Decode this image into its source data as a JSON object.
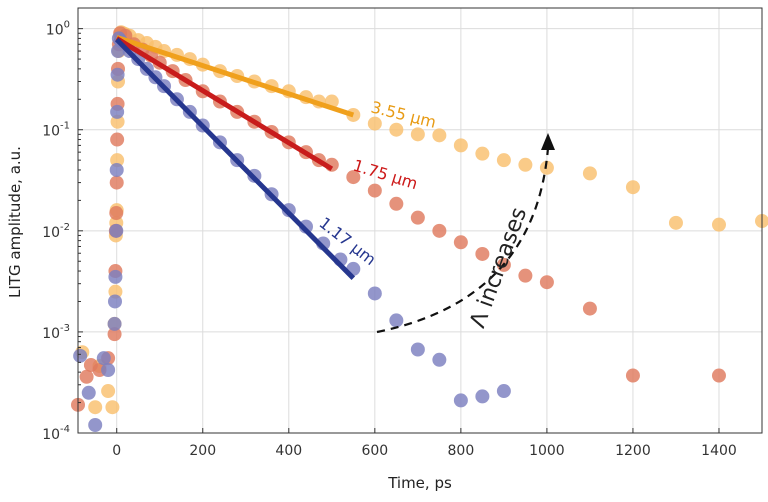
{
  "chart_data": {
    "type": "scatter",
    "title": "",
    "xlabel": "Time, ps",
    "ylabel": "LITG amplitude, a.u.",
    "xlim": [
      -90,
      1500
    ],
    "ylim": [
      0.0001,
      1.6
    ],
    "yscale": "log",
    "grid": true,
    "x_ticks": [
      0,
      200,
      400,
      600,
      800,
      1000,
      1200,
      1400
    ],
    "x_tick_labels": [
      "0",
      "200",
      "400",
      "600",
      "800",
      "1000",
      "1200",
      "1400"
    ],
    "y_ticks": [
      1,
      0.1,
      0.01,
      0.001,
      0.0001
    ],
    "y_tick_labels": [
      {
        "base": "10",
        "exp": "0"
      },
      {
        "base": "10",
        "exp": "-1"
      },
      {
        "base": "10",
        "exp": "-2"
      },
      {
        "base": "10",
        "exp": "-3"
      },
      {
        "base": "10",
        "exp": "-4"
      }
    ],
    "series": [
      {
        "name": "3.55 µm",
        "label": "3.55 µm",
        "dot_color": "#f9c06e",
        "fit_color": "#f0a01c",
        "label_color": "#e89b14",
        "fit": {
          "x0": 0,
          "y0": 0.82,
          "x1": 550,
          "y1": 0.14
        },
        "points": [
          [
            -80,
            0.00063
          ],
          [
            -50,
            0.00018
          ],
          [
            -40,
            0.00046
          ],
          [
            -20,
            0.00026
          ],
          [
            -10,
            0.00018
          ],
          [
            -5,
            0.0012
          ],
          [
            -3,
            0.0025
          ],
          [
            -2,
            0.009
          ],
          [
            -1,
            0.012
          ],
          [
            0,
            0.016
          ],
          [
            1,
            0.05
          ],
          [
            2,
            0.12
          ],
          [
            3,
            0.3
          ],
          [
            5,
            0.6
          ],
          [
            8,
            0.85
          ],
          [
            10,
            0.92
          ],
          [
            15,
            0.9
          ],
          [
            20,
            0.88
          ],
          [
            30,
            0.85
          ],
          [
            50,
            0.77
          ],
          [
            70,
            0.72
          ],
          [
            90,
            0.66
          ],
          [
            110,
            0.6
          ],
          [
            140,
            0.55
          ],
          [
            170,
            0.5
          ],
          [
            200,
            0.44
          ],
          [
            240,
            0.38
          ],
          [
            280,
            0.34
          ],
          [
            320,
            0.3
          ],
          [
            360,
            0.27
          ],
          [
            400,
            0.24
          ],
          [
            440,
            0.21
          ],
          [
            470,
            0.19
          ],
          [
            500,
            0.19
          ],
          [
            550,
            0.14
          ],
          [
            600,
            0.115
          ],
          [
            650,
            0.1
          ],
          [
            700,
            0.09
          ],
          [
            750,
            0.088
          ],
          [
            800,
            0.07
          ],
          [
            850,
            0.058
          ],
          [
            900,
            0.05
          ],
          [
            950,
            0.045
          ],
          [
            1000,
            0.042
          ],
          [
            1100,
            0.037
          ],
          [
            1200,
            0.027
          ],
          [
            1300,
            0.012
          ],
          [
            1400,
            0.0115
          ],
          [
            1500,
            0.0125
          ]
        ]
      },
      {
        "name": "1.75 µm",
        "label": "1.75 µm",
        "dot_color": "#df7a5e",
        "fit_color": "#c81c1c",
        "label_color": "#cc1818",
        "fit": {
          "x0": 0,
          "y0": 0.8,
          "x1": 500,
          "y1": 0.041
        },
        "points": [
          [
            -90,
            0.00019
          ],
          [
            -70,
            0.00036
          ],
          [
            -60,
            0.00047
          ],
          [
            -40,
            0.00042
          ],
          [
            -20,
            0.00055
          ],
          [
            -5,
            0.00095
          ],
          [
            -3,
            0.004
          ],
          [
            -2,
            0.01
          ],
          [
            -1,
            0.015
          ],
          [
            0,
            0.03
          ],
          [
            1,
            0.08
          ],
          [
            2,
            0.18
          ],
          [
            3,
            0.4
          ],
          [
            5,
            0.7
          ],
          [
            8,
            0.9
          ],
          [
            20,
            0.85
          ],
          [
            40,
            0.7
          ],
          [
            60,
            0.62
          ],
          [
            80,
            0.54
          ],
          [
            100,
            0.46
          ],
          [
            130,
            0.38
          ],
          [
            160,
            0.31
          ],
          [
            200,
            0.24
          ],
          [
            240,
            0.19
          ],
          [
            280,
            0.15
          ],
          [
            320,
            0.12
          ],
          [
            360,
            0.095
          ],
          [
            400,
            0.075
          ],
          [
            440,
            0.06
          ],
          [
            470,
            0.05
          ],
          [
            500,
            0.045
          ],
          [
            550,
            0.034
          ],
          [
            600,
            0.025
          ],
          [
            650,
            0.0185
          ],
          [
            700,
            0.0135
          ],
          [
            750,
            0.01
          ],
          [
            800,
            0.0077
          ],
          [
            850,
            0.0059
          ],
          [
            900,
            0.0046
          ],
          [
            950,
            0.0036
          ],
          [
            1000,
            0.0031
          ],
          [
            1100,
            0.0017
          ],
          [
            1200,
            0.00037
          ],
          [
            1400,
            0.00037
          ]
        ]
      },
      {
        "name": "1.17 µm",
        "label": "1.17 µm",
        "dot_color": "#7b7fbf",
        "fit_color": "#26378f",
        "label_color": "#26378f",
        "fit": {
          "x0": 0,
          "y0": 0.78,
          "x1": 550,
          "y1": 0.0034
        },
        "points": [
          [
            -85,
            0.00058
          ],
          [
            -65,
            0.00025
          ],
          [
            -50,
            0.00012
          ],
          [
            -30,
            0.00055
          ],
          [
            -20,
            0.00042
          ],
          [
            -5,
            0.0012
          ],
          [
            -4,
            0.002
          ],
          [
            -3,
            0.0035
          ],
          [
            -1,
            0.01
          ],
          [
            0,
            0.04
          ],
          [
            1,
            0.15
          ],
          [
            2,
            0.35
          ],
          [
            3,
            0.6
          ],
          [
            5,
            0.8
          ],
          [
            10,
            0.75
          ],
          [
            30,
            0.6
          ],
          [
            50,
            0.5
          ],
          [
            70,
            0.4
          ],
          [
            90,
            0.33
          ],
          [
            110,
            0.27
          ],
          [
            140,
            0.2
          ],
          [
            170,
            0.15
          ],
          [
            200,
            0.11
          ],
          [
            240,
            0.075
          ],
          [
            280,
            0.05
          ],
          [
            320,
            0.035
          ],
          [
            360,
            0.023
          ],
          [
            400,
            0.016
          ],
          [
            440,
            0.011
          ],
          [
            480,
            0.0075
          ],
          [
            520,
            0.0052
          ],
          [
            550,
            0.0042
          ],
          [
            600,
            0.0024
          ],
          [
            650,
            0.0013
          ],
          [
            700,
            0.00067
          ],
          [
            750,
            0.00053
          ],
          [
            800,
            0.00021
          ],
          [
            850,
            0.00023
          ],
          [
            900,
            0.00026
          ]
        ]
      }
    ],
    "annotations": {
      "arrow_text": "Λ increases",
      "arrow_color": "#111111"
    }
  }
}
